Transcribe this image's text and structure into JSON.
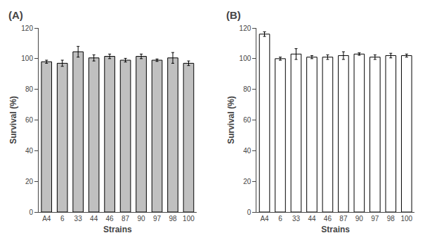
{
  "chart_data": [
    {
      "type": "bar",
      "title": "(A)",
      "categories": [
        "A4",
        "6",
        "33",
        "44",
        "46",
        "87",
        "90",
        "97",
        "98",
        "100"
      ],
      "values": [
        98.0,
        97.0,
        104.5,
        100.5,
        101.5,
        99.0,
        101.5,
        99.0,
        100.5,
        97.0
      ],
      "errors": [
        1.0,
        2.0,
        3.5,
        2.0,
        1.5,
        1.2,
        1.5,
        0.8,
        3.5,
        1.5
      ],
      "color": "#c0c0c0",
      "xlabel": "Strains",
      "ylabel": "Survival (%)",
      "ylim": [
        0,
        120
      ],
      "yticks": [
        0,
        20,
        40,
        60,
        80,
        100,
        120
      ],
      "grid": false
    },
    {
      "type": "bar",
      "title": "(B)",
      "categories": [
        "A4",
        "6",
        "33",
        "44",
        "46",
        "87",
        "90",
        "97",
        "98",
        "100"
      ],
      "values": [
        116.0,
        100.0,
        103.0,
        101.0,
        101.0,
        102.0,
        103.0,
        101.0,
        102.0,
        102.0
      ],
      "errors": [
        1.5,
        1.0,
        3.5,
        1.0,
        1.5,
        2.5,
        0.8,
        1.5,
        1.5,
        1.0
      ],
      "color": "#ffffff",
      "xlabel": "Strains",
      "ylabel": "Survival (%)",
      "ylim": [
        0,
        120
      ],
      "yticks": [
        0,
        20,
        40,
        60,
        80,
        100,
        120
      ],
      "grid": false
    }
  ]
}
